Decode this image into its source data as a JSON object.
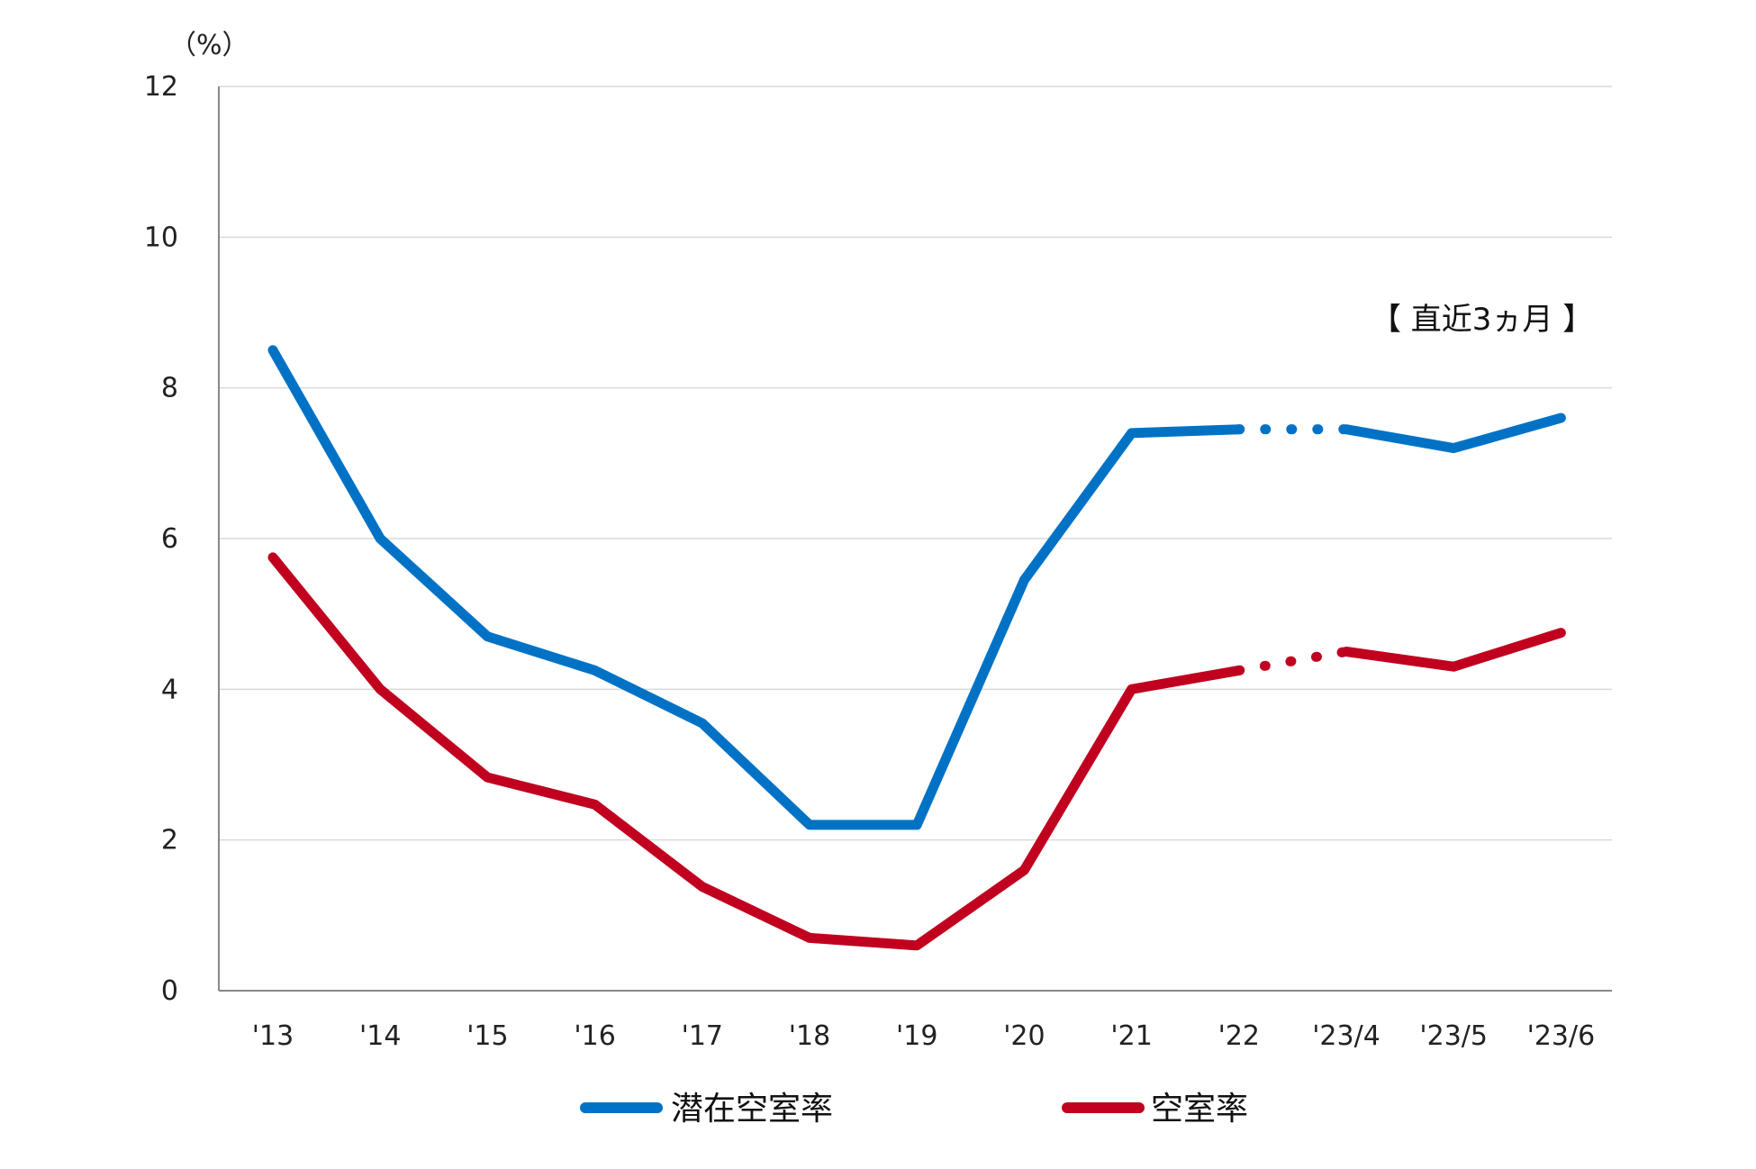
{
  "chart_data": {
    "type": "line",
    "unit_label": "（%）",
    "annotation": "【 直近3ヵ月 】",
    "categories": [
      "'13",
      "'14",
      "'15",
      "'16",
      "'17",
      "'18",
      "'19",
      "'20",
      "'21",
      "'22",
      "'23/4",
      "'23/5",
      "'23/6"
    ],
    "ylim": [
      0,
      12
    ],
    "yticks": [
      "0",
      "2",
      "4",
      "6",
      "8",
      "10",
      "12"
    ],
    "grid": true,
    "legend_position": "bottom",
    "break_between": [
      "'22",
      "'23/4"
    ],
    "series": [
      {
        "name": "潜在空室率",
        "color": "#0072c6",
        "values": [
          8.5,
          6.0,
          4.7,
          4.25,
          3.55,
          2.2,
          2.2,
          5.45,
          7.4,
          7.45,
          7.45,
          7.2,
          7.6
        ]
      },
      {
        "name": "空室率",
        "color": "#c0001e",
        "values": [
          5.75,
          4.0,
          2.83,
          2.47,
          1.38,
          0.7,
          0.6,
          1.6,
          4.0,
          4.25,
          4.5,
          4.3,
          4.75
        ]
      }
    ]
  }
}
